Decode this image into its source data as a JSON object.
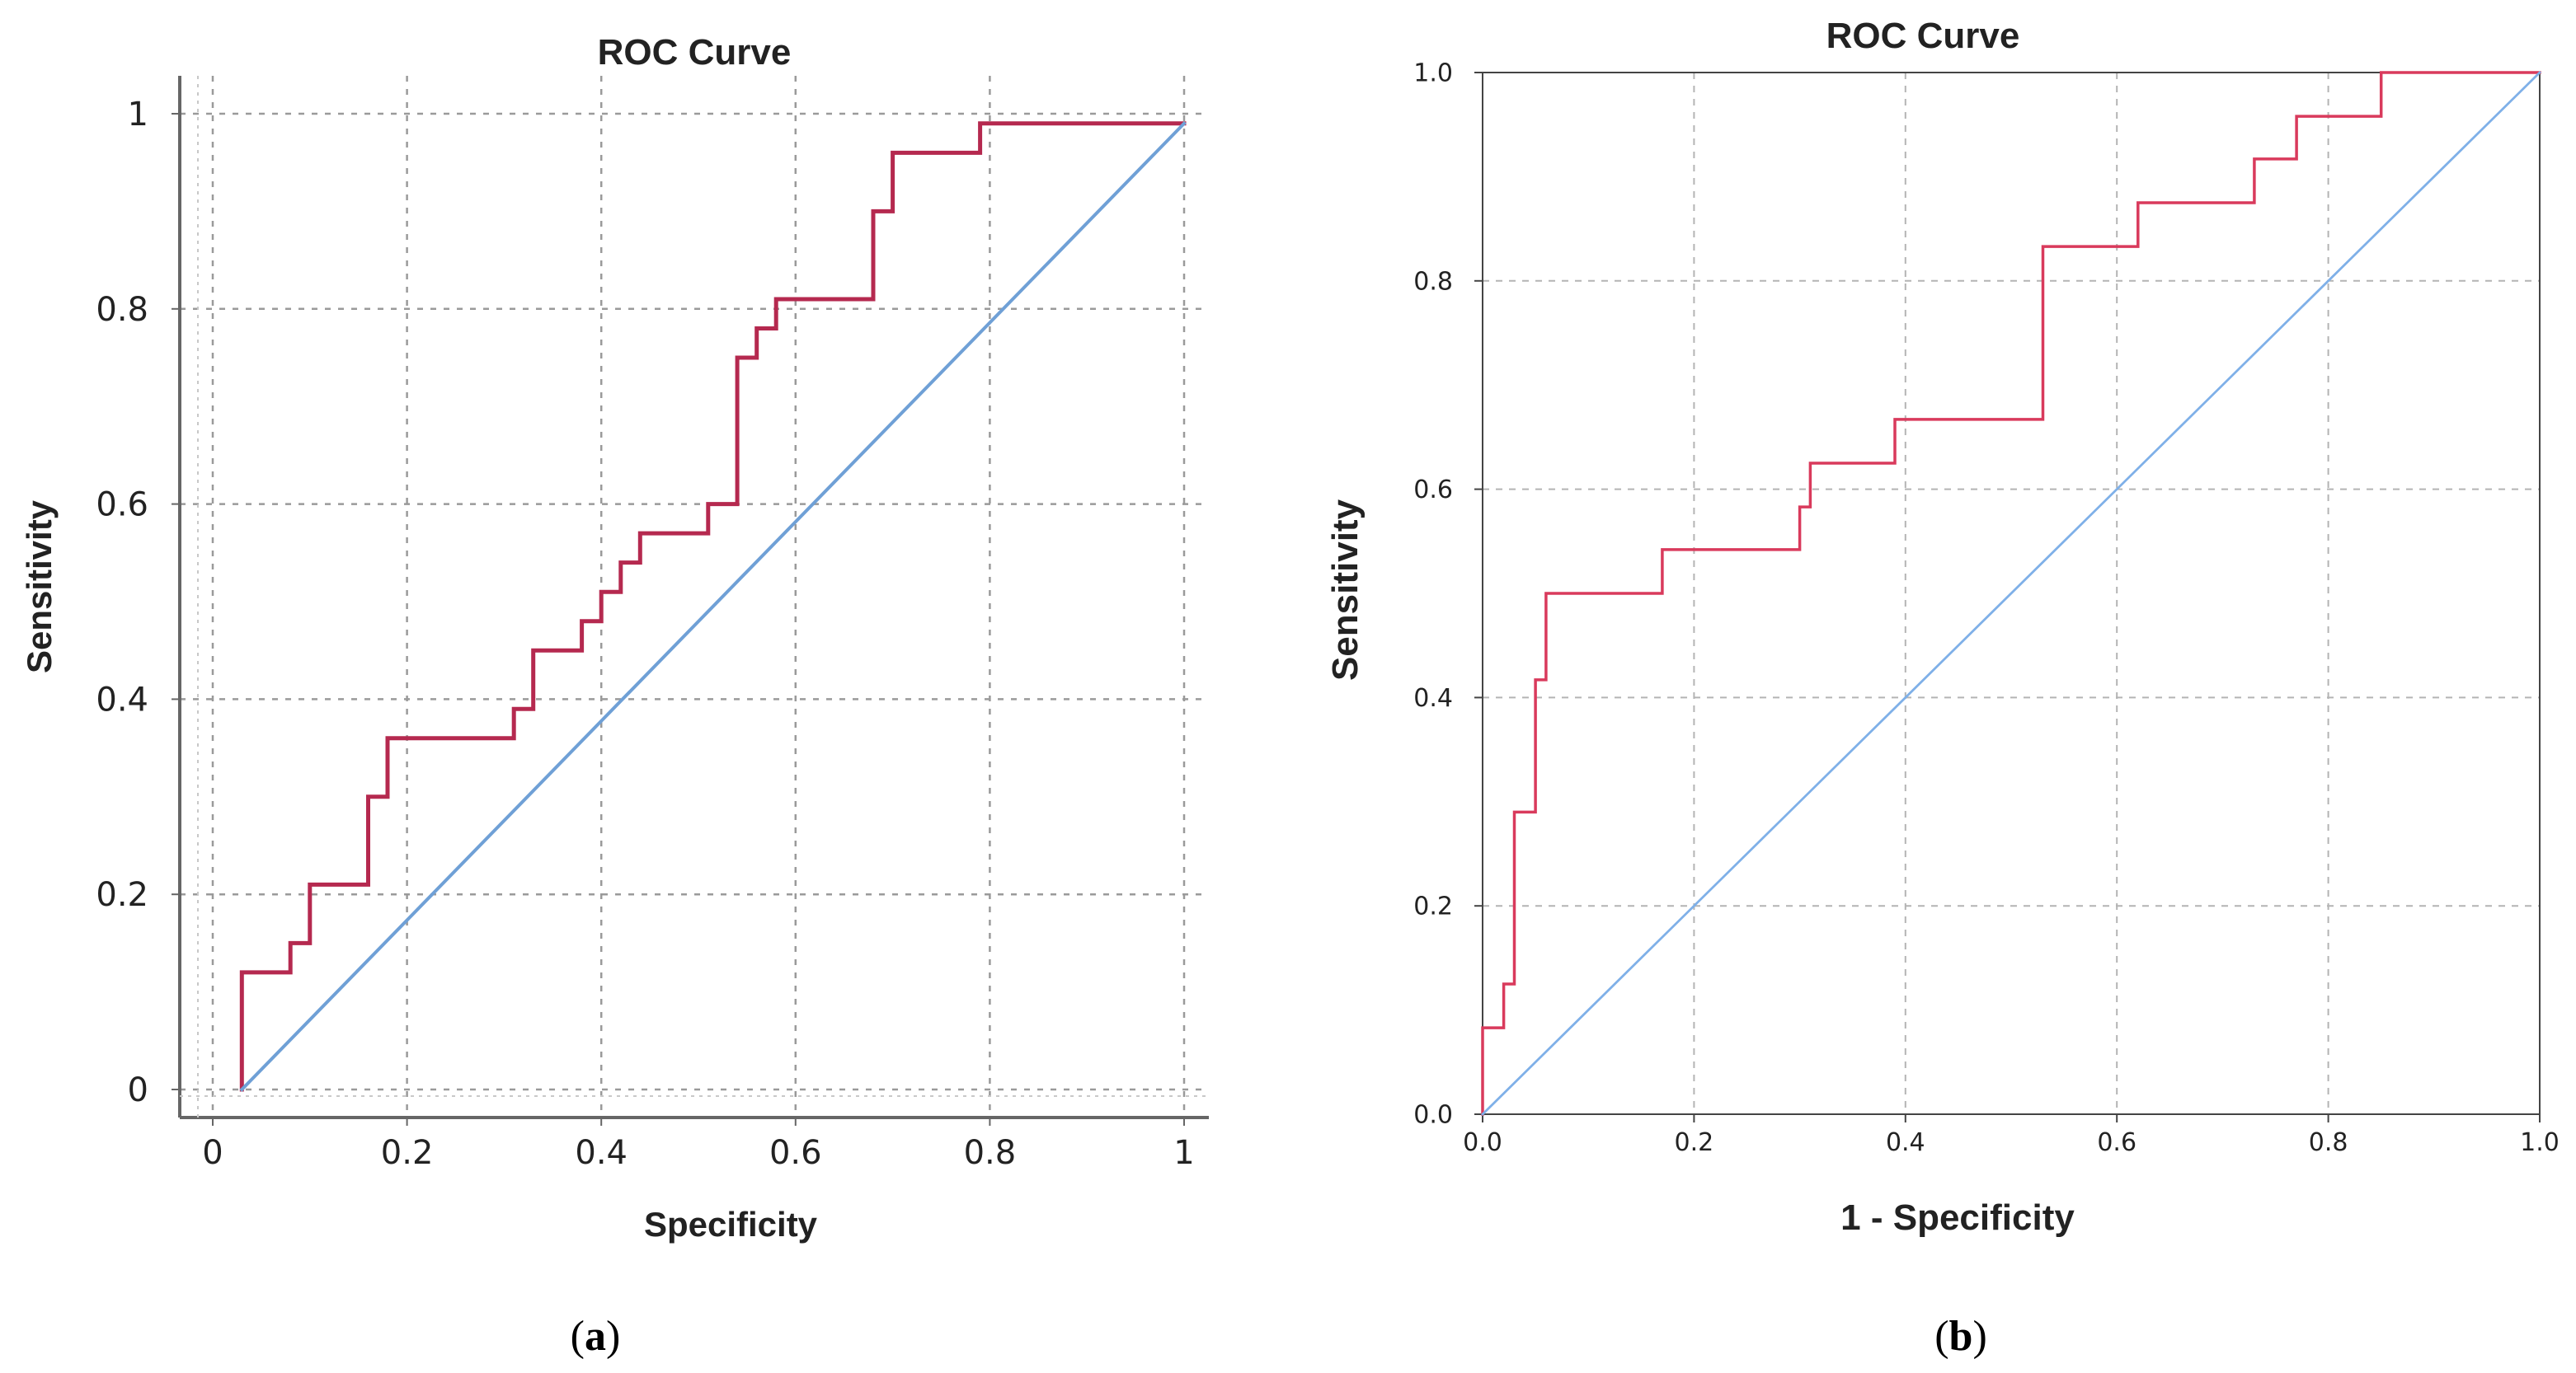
{
  "chart_data": [
    {
      "type": "line",
      "panel_label": "a",
      "title": "ROC Curve",
      "xlabel": "Specificity",
      "ylabel": "Sensitivity",
      "xlim": [
        0,
        1
      ],
      "ylim": [
        0,
        1
      ],
      "x_tick_labels": [
        "0",
        "0.2",
        "0.4",
        "0.6",
        "0.8",
        "1"
      ],
      "y_tick_labels": [
        "0",
        "0.2",
        "0.4",
        "0.6",
        "0.8",
        "1"
      ],
      "grid": true,
      "colors": {
        "roc": "#b5294f",
        "reference": "#6fa0d6"
      },
      "series": [
        {
          "name": "ROC",
          "points": [
            [
              0.03,
              0
            ],
            [
              0.03,
              0.12
            ],
            [
              0.08,
              0.12
            ],
            [
              0.08,
              0.15
            ],
            [
              0.1,
              0.15
            ],
            [
              0.1,
              0.21
            ],
            [
              0.16,
              0.21
            ],
            [
              0.16,
              0.3
            ],
            [
              0.18,
              0.3
            ],
            [
              0.18,
              0.36
            ],
            [
              0.31,
              0.36
            ],
            [
              0.31,
              0.39
            ],
            [
              0.33,
              0.39
            ],
            [
              0.33,
              0.45
            ],
            [
              0.38,
              0.45
            ],
            [
              0.38,
              0.48
            ],
            [
              0.4,
              0.48
            ],
            [
              0.4,
              0.51
            ],
            [
              0.42,
              0.51
            ],
            [
              0.42,
              0.54
            ],
            [
              0.44,
              0.54
            ],
            [
              0.44,
              0.57
            ],
            [
              0.51,
              0.57
            ],
            [
              0.51,
              0.6
            ],
            [
              0.54,
              0.6
            ],
            [
              0.54,
              0.75
            ],
            [
              0.56,
              0.75
            ],
            [
              0.56,
              0.78
            ],
            [
              0.58,
              0.78
            ],
            [
              0.58,
              0.81
            ],
            [
              0.68,
              0.81
            ],
            [
              0.68,
              0.9
            ],
            [
              0.7,
              0.9
            ],
            [
              0.7,
              0.96
            ],
            [
              0.79,
              0.96
            ],
            [
              0.79,
              0.99
            ],
            [
              1,
              0.99
            ]
          ]
        },
        {
          "name": "Reference Line",
          "points": [
            [
              0.03,
              0
            ],
            [
              1,
              0.99
            ]
          ]
        }
      ]
    },
    {
      "type": "line",
      "panel_label": "b",
      "title": "ROC Curve",
      "xlabel": "1 - Specificity",
      "ylabel": "Sensitivity",
      "xlim": [
        0,
        1
      ],
      "ylim": [
        0,
        1
      ],
      "x_tick_labels": [
        "0.0",
        "0.2",
        "0.4",
        "0.6",
        "0.8",
        "1.0"
      ],
      "y_tick_labels": [
        "0.0",
        "0.2",
        "0.4",
        "0.6",
        "0.8",
        "1.0"
      ],
      "grid": true,
      "colors": {
        "roc": "#d93a5c",
        "reference": "#7fb0e8"
      },
      "series": [
        {
          "name": "ROC",
          "points": [
            [
              0,
              0
            ],
            [
              0,
              0.083
            ],
            [
              0.02,
              0.083
            ],
            [
              0.02,
              0.125
            ],
            [
              0.03,
              0.125
            ],
            [
              0.03,
              0.29
            ],
            [
              0.05,
              0.29
            ],
            [
              0.05,
              0.417
            ],
            [
              0.06,
              0.417
            ],
            [
              0.06,
              0.5
            ],
            [
              0.17,
              0.5
            ],
            [
              0.17,
              0.542
            ],
            [
              0.3,
              0.542
            ],
            [
              0.3,
              0.583
            ],
            [
              0.31,
              0.583
            ],
            [
              0.31,
              0.625
            ],
            [
              0.39,
              0.625
            ],
            [
              0.39,
              0.667
            ],
            [
              0.53,
              0.667
            ],
            [
              0.53,
              0.833
            ],
            [
              0.62,
              0.833
            ],
            [
              0.62,
              0.875
            ],
            [
              0.73,
              0.875
            ],
            [
              0.73,
              0.917
            ],
            [
              0.77,
              0.917
            ],
            [
              0.77,
              0.958
            ],
            [
              0.85,
              0.958
            ],
            [
              0.85,
              1
            ],
            [
              1,
              1
            ]
          ]
        },
        {
          "name": "Reference Line",
          "points": [
            [
              0,
              0
            ],
            [
              1,
              1
            ]
          ]
        }
      ]
    }
  ]
}
